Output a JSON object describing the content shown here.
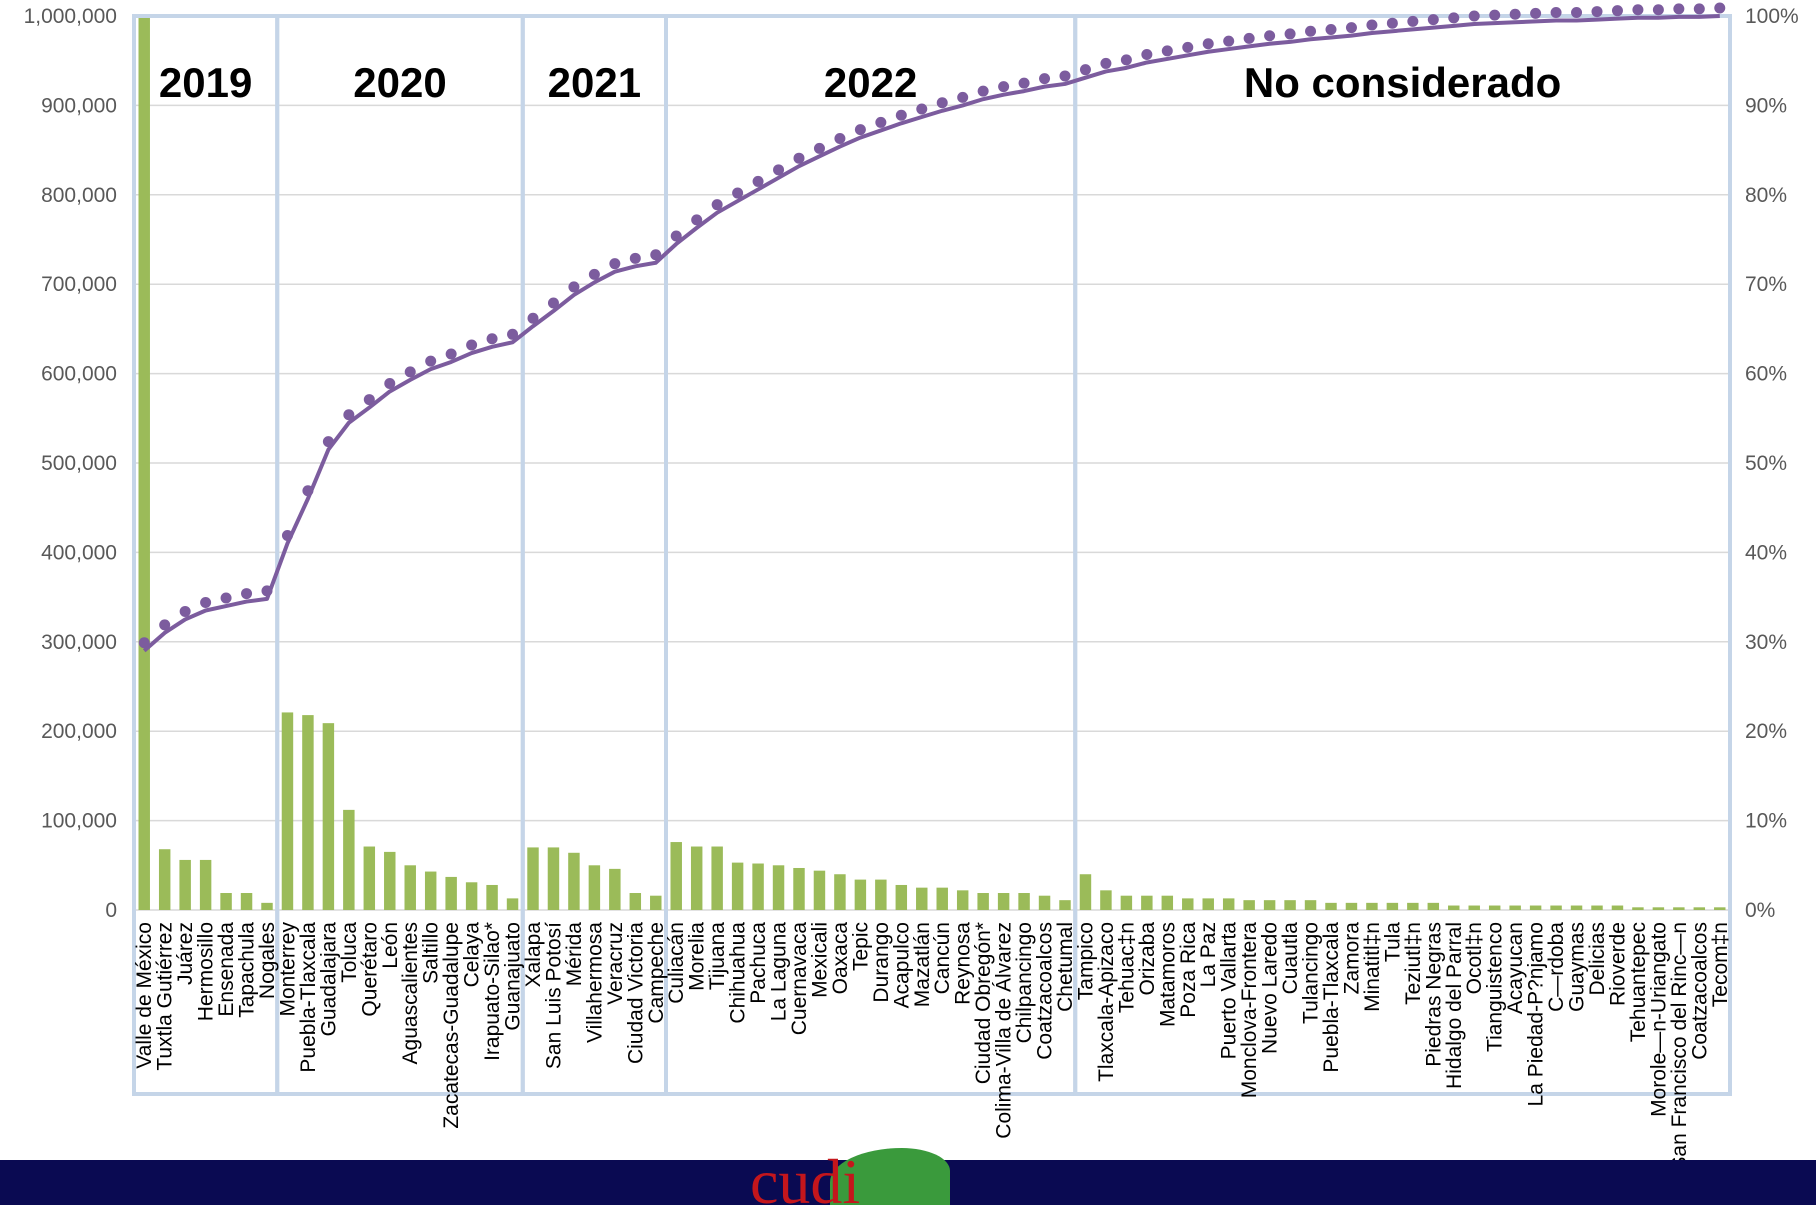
{
  "chart_data": {
    "type": "bar",
    "categories": [
      "Valle de México",
      "Tuxtla Gutiérrez",
      "Juárez",
      "Hermosillo",
      "Ensenada",
      "Tapachula",
      "Nogales",
      "Monterrey",
      "Puebla-Tlaxcala",
      "Guadalajara",
      "Toluca",
      "Querétaro",
      "León",
      "Aguascalientes",
      "Saltillo",
      "Zacatecas-Guadalupe",
      "Celaya",
      "Irapuato-Silao*",
      "Guanajuato",
      "Xalapa",
      "San Luis Potosí",
      "Mérida",
      "Villahermosa",
      "Veracruz",
      "Ciudad Victoria",
      "Campeche",
      "Culiacán",
      "Morelia",
      "Tijuana",
      "Chihuahua",
      "Pachuca",
      "La Laguna",
      "Cuernavaca",
      "Mexicali",
      "Oaxaca",
      "Tepic",
      "Durango",
      "Acapulco",
      "Mazatlán",
      "Cancún",
      "Reynosa",
      "Ciudad Obregón*",
      "Colima-Villa de Álvarez",
      "Chilpancingo",
      "Coatzacoalcos",
      "Chetumal",
      "Tampico",
      "Tlaxcala-Apizaco",
      "Tehuacán",
      "Orizaba",
      "Matamoros",
      "Poza Rica",
      "La Paz",
      "Puerto Vallarta",
      "Monclova-Frontera",
      "Nuevo Laredo",
      "Cuautla",
      "Tulancingo",
      "Puebla-Tlaxcala",
      "Zamora",
      "Minatitlán",
      "Tula",
      "Teziutlán",
      "Piedras Negras",
      "Hidalgo del Parral",
      "Ocotlán",
      "Tianguistenco",
      "Acayucan",
      "La Piedad-Pénjamo",
      "Córdoba",
      "Guaymas",
      "Delicias",
      "Rioverde",
      "Tehuantepec",
      "Moroleón-Uriangato",
      "San Francisco del Rincón",
      "Coatzacoalcos",
      "Tecomán"
    ],
    "display_labels": [
      "Valle de México",
      "Tuxtla Gutiérrez",
      "Juárez",
      "Hermosillo",
      "Ensenada",
      "Tapachula",
      "Nogales",
      "Monterrey",
      "Puebla-Tlaxcala",
      "Guadalajara",
      "Toluca",
      "Querétaro",
      "León",
      "Aguascalientes",
      "Saltillo",
      "Zacatecas-Guadalupe",
      "Celaya",
      "Irapuato-Silao*",
      "Guanajuato",
      "Xalapa",
      "San Luis Potosí",
      "Mérida",
      "Villahermosa",
      "Veracruz",
      "Ciudad Victoria",
      "Campeche",
      "Culiacán",
      "Morelia",
      "Tijuana",
      "Chihuahua",
      "Pachuca",
      "La Laguna",
      "Cuernavaca",
      "Mexicali",
      "Oaxaca",
      "Tepic",
      "Durango",
      "Acapulco",
      "Mazatlán",
      "Cancún",
      "Reynosa",
      "Ciudad Obregón*",
      "Colima-Villa de Álvarez",
      "Chilpancingo",
      "Coatzacoalcos",
      "Chetumal",
      "Tampico",
      "Tlaxcala-Apizaco",
      "Tehuac‡n",
      "Orizaba",
      "Matamoros",
      "Poza Rica",
      "La Paz",
      "Puerto Vallarta",
      "Monclova-Frontera",
      "Nuevo Laredo",
      "Cuautla",
      "Tulancingo",
      "Puebla-Tlaxcala",
      "Zamora",
      "Minatitl‡n",
      "Tula",
      "Teziutl‡n",
      "Piedras Negras",
      "Hidalgo del Parral",
      "Ocotl‡n",
      "Tianguistenco",
      "Acayucan",
      "La Piedad-P?njamo",
      "C—rdoba",
      "Guaymas",
      "Delicias",
      "Rioverde",
      "Tehuantepec",
      "Morole—n-Uriangato",
      "San Francisco del Rinc—n",
      "Coatzacoalcos",
      "Tecom‡n"
    ],
    "series": [
      {
        "type": "bar",
        "color": "#9bbb59",
        "values": [
          1000000,
          68000,
          56000,
          56000,
          19000,
          19000,
          8000,
          221000,
          218000,
          209000,
          112000,
          71000,
          65000,
          50000,
          43000,
          37000,
          31000,
          28000,
          13000,
          70000,
          70000,
          64000,
          50000,
          46000,
          19000,
          16000,
          76000,
          71000,
          71000,
          53000,
          52000,
          50000,
          47000,
          44000,
          40000,
          34000,
          34000,
          28000,
          25000,
          25000,
          22000,
          19000,
          19000,
          19000,
          16000,
          11000,
          40000,
          22000,
          16000,
          16000,
          16000,
          13000,
          13000,
          13000,
          11000,
          11000,
          11000,
          11000,
          8000,
          8000,
          8000,
          8000,
          8000,
          8000,
          5000,
          5000,
          5000,
          5000,
          5000,
          5000,
          5000,
          5000,
          5000,
          3000,
          3000,
          3000,
          3000,
          3000
        ]
      },
      {
        "type": "line",
        "axis": "right",
        "color": "#7c5c9e",
        "values": [
          29,
          31,
          32.5,
          33.5,
          34,
          34.5,
          34.8,
          41,
          46,
          51.5,
          54.5,
          56.2,
          58,
          59.3,
          60.5,
          61.3,
          62.3,
          63,
          63.5,
          65.3,
          67,
          68.8,
          70.2,
          71.4,
          72,
          72.4,
          74.5,
          76.3,
          78,
          79.3,
          80.6,
          81.9,
          83.2,
          84.3,
          85.4,
          86.4,
          87.2,
          88,
          88.7,
          89.4,
          90,
          90.7,
          91.2,
          91.6,
          92.1,
          92.4,
          93.1,
          93.8,
          94.2,
          94.8,
          95.2,
          95.6,
          96,
          96.3,
          96.6,
          96.9,
          97.1,
          97.4,
          97.6,
          97.8,
          98.1,
          98.3,
          98.5,
          98.7,
          98.9,
          99.1,
          99.2,
          99.3,
          99.4,
          99.5,
          99.5,
          99.6,
          99.7,
          99.8,
          99.8,
          99.9,
          99.9,
          100
        ]
      }
    ],
    "groups": [
      {
        "label": "2019",
        "start": 0,
        "end": 6
      },
      {
        "label": "2020",
        "start": 7,
        "end": 18
      },
      {
        "label": "2021",
        "start": 19,
        "end": 25
      },
      {
        "label": "2022",
        "start": 26,
        "end": 45
      },
      {
        "label": "No considerado",
        "start": 46,
        "end": 77
      }
    ],
    "y_left": {
      "min": 0,
      "max": 1000000,
      "ticks": [
        "0",
        "100,000",
        "200,000",
        "300,000",
        "400,000",
        "500,000",
        "600,000",
        "700,000",
        "800,000",
        "900,000",
        "1,000,000"
      ]
    },
    "y_right": {
      "min": 0,
      "max": 100,
      "ticks": [
        "0%",
        "10%",
        "20%",
        "30%",
        "40%",
        "50%",
        "60%",
        "70%",
        "80%",
        "90%",
        "100%"
      ]
    },
    "grid": true,
    "colors": {
      "bar": "#9bbb59",
      "line": "#7c5c9e",
      "section_border": "#c5d5e8",
      "footer": "#0a0a52",
      "logo_red": "#c4161c",
      "logo_green": "#3a9a3c"
    }
  },
  "footer": {
    "logo_text": "cudi"
  }
}
